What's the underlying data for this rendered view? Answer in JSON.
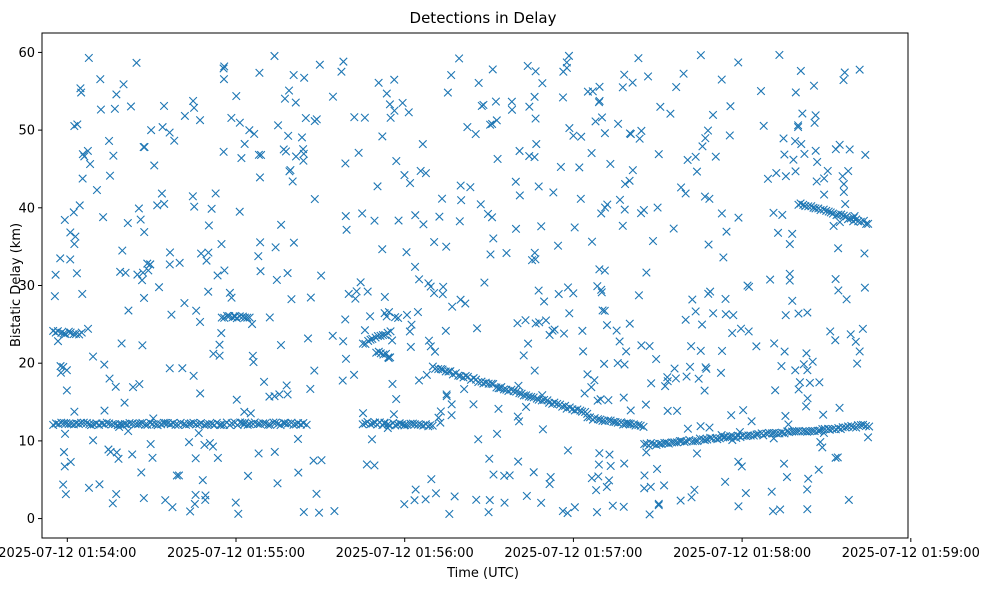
{
  "chart_data": {
    "type": "scatter",
    "title": "Detections in Delay",
    "xlabel": "Time (UTC)",
    "ylabel": "Bistatic Delay (km)",
    "marker": "x",
    "color": "#1f77b4",
    "grid": false,
    "x_domain": [
      "2025-07-12 01:53:51",
      "2025-07-12 01:58:59"
    ],
    "ylim": [
      -2.5,
      62.5
    ],
    "xticks": [
      "2025-07-12 01:54:00",
      "2025-07-12 01:55:00",
      "2025-07-12 01:56:00",
      "2025-07-12 01:57:00",
      "2025-07-12 01:58:00",
      "2025-07-12 01:59:00"
    ],
    "yticks": [
      0,
      10,
      20,
      30,
      40,
      50,
      60
    ],
    "data_window": [
      "2025-07-12 01:53:55",
      "2025-07-12 01:58:45"
    ],
    "tracks": [
      {
        "x": [
          "2025-07-12 01:53:55",
          "2025-07-12 01:55:25"
        ],
        "y": [
          12.2,
          12.2
        ]
      },
      {
        "x": [
          "2025-07-12 01:55:45",
          "2025-07-12 01:56:10"
        ],
        "y": [
          12.3,
          12.0
        ]
      },
      {
        "x": [
          "2025-07-12 01:56:10",
          "2025-07-12 01:57:05"
        ],
        "y": [
          19.5,
          13.5
        ]
      },
      {
        "x": [
          "2025-07-12 01:57:05",
          "2025-07-12 01:57:25"
        ],
        "y": [
          13.0,
          11.8
        ]
      },
      {
        "x": [
          "2025-07-12 01:57:25",
          "2025-07-12 01:58:45"
        ],
        "y": [
          9.5,
          12.0
        ]
      },
      {
        "x": [
          "2025-07-12 01:55:45",
          "2025-07-12 01:55:55"
        ],
        "y": [
          22.5,
          24.0
        ]
      },
      {
        "x": [
          "2025-07-12 01:55:50",
          "2025-07-12 01:55:55"
        ],
        "y": [
          21.5,
          20.8
        ]
      },
      {
        "x": [
          "2025-07-12 01:58:20",
          "2025-07-12 01:58:45"
        ],
        "y": [
          40.5,
          38.0
        ]
      },
      {
        "x": [
          "2025-07-12 01:53:55",
          "2025-07-12 01:54:05"
        ],
        "y": [
          24.0,
          23.8
        ]
      },
      {
        "x": [
          "2025-07-12 01:54:55",
          "2025-07-12 01:55:05"
        ],
        "y": [
          26.0,
          25.8
        ]
      }
    ]
  }
}
